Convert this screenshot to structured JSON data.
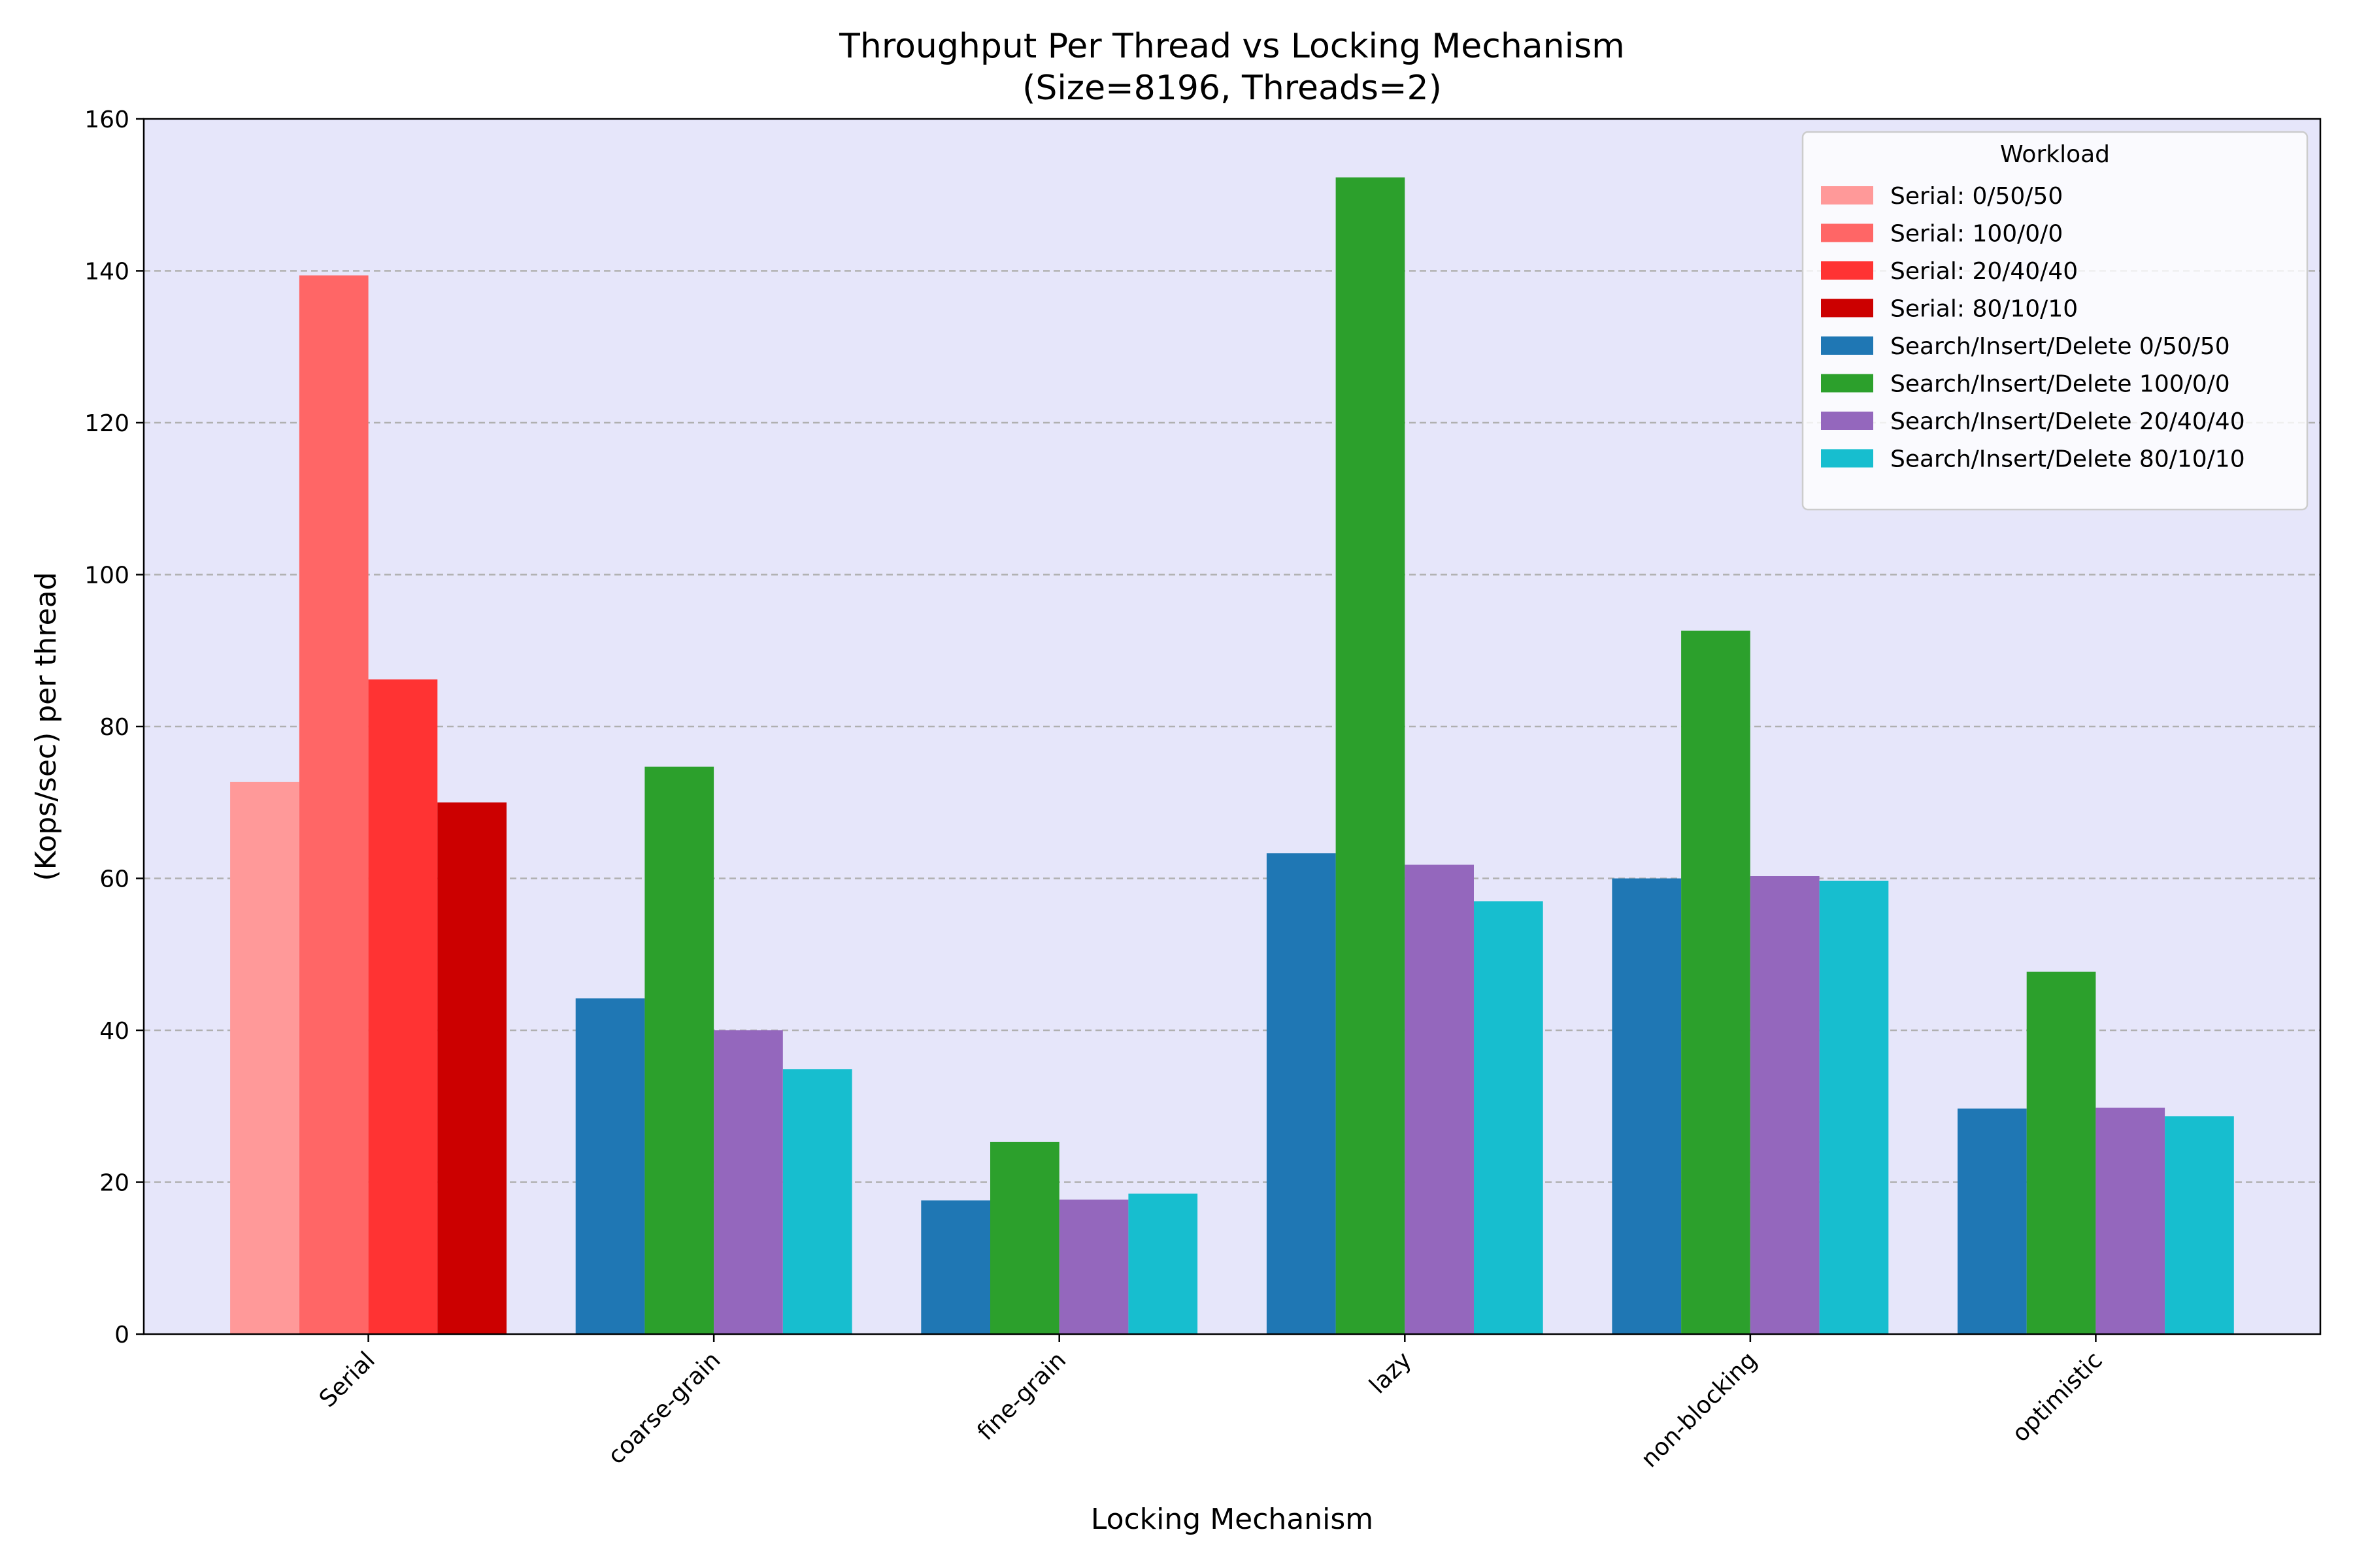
{
  "chart_data": {
    "type": "bar",
    "title": "Throughput Per Thread vs Locking Mechanism",
    "subtitle": "(Size=8196, Threads=2)",
    "xlabel": "Locking Mechanism",
    "ylabel": "(Kops/sec) per thread",
    "ylim": [
      0,
      160
    ],
    "yticks": [
      0,
      20,
      40,
      60,
      80,
      100,
      120,
      140,
      160
    ],
    "grid": "y, dashed",
    "plot_background": "#e6e6fa",
    "categories": [
      "Serial",
      "coarse-grain",
      "fine-grain",
      "lazy",
      "non-blocking",
      "optimistic"
    ],
    "legend": {
      "title": "Workload",
      "placement": "top-right"
    },
    "series": [
      {
        "name": "Serial: 0/50/50",
        "color": "#ff9999",
        "values": [
          72.7,
          null,
          null,
          null,
          null,
          null
        ]
      },
      {
        "name": "Serial: 100/0/0",
        "color": "#ff6666",
        "values": [
          139.4,
          null,
          null,
          null,
          null,
          null
        ]
      },
      {
        "name": "Serial: 20/40/40",
        "color": "#ff3333",
        "values": [
          86.2,
          null,
          null,
          null,
          null,
          null
        ]
      },
      {
        "name": "Serial: 80/10/10",
        "color": "#cc0000",
        "values": [
          70.0,
          null,
          null,
          null,
          null,
          null
        ]
      },
      {
        "name": "Search/Insert/Delete 0/50/50",
        "color": "#1f77b4",
        "values": [
          null,
          44.2,
          17.6,
          63.3,
          60.0,
          29.7
        ]
      },
      {
        "name": "Search/Insert/Delete 100/0/0",
        "color": "#2ca02c",
        "values": [
          null,
          74.7,
          25.3,
          152.3,
          92.6,
          47.7
        ]
      },
      {
        "name": "Search/Insert/Delete 20/40/40",
        "color": "#9467bd",
        "values": [
          null,
          40.0,
          17.7,
          61.8,
          60.3,
          29.8
        ]
      },
      {
        "name": "Search/Insert/Delete 80/10/10",
        "color": "#17becf",
        "values": [
          null,
          34.9,
          18.5,
          57.0,
          59.7,
          28.7
        ]
      }
    ]
  }
}
